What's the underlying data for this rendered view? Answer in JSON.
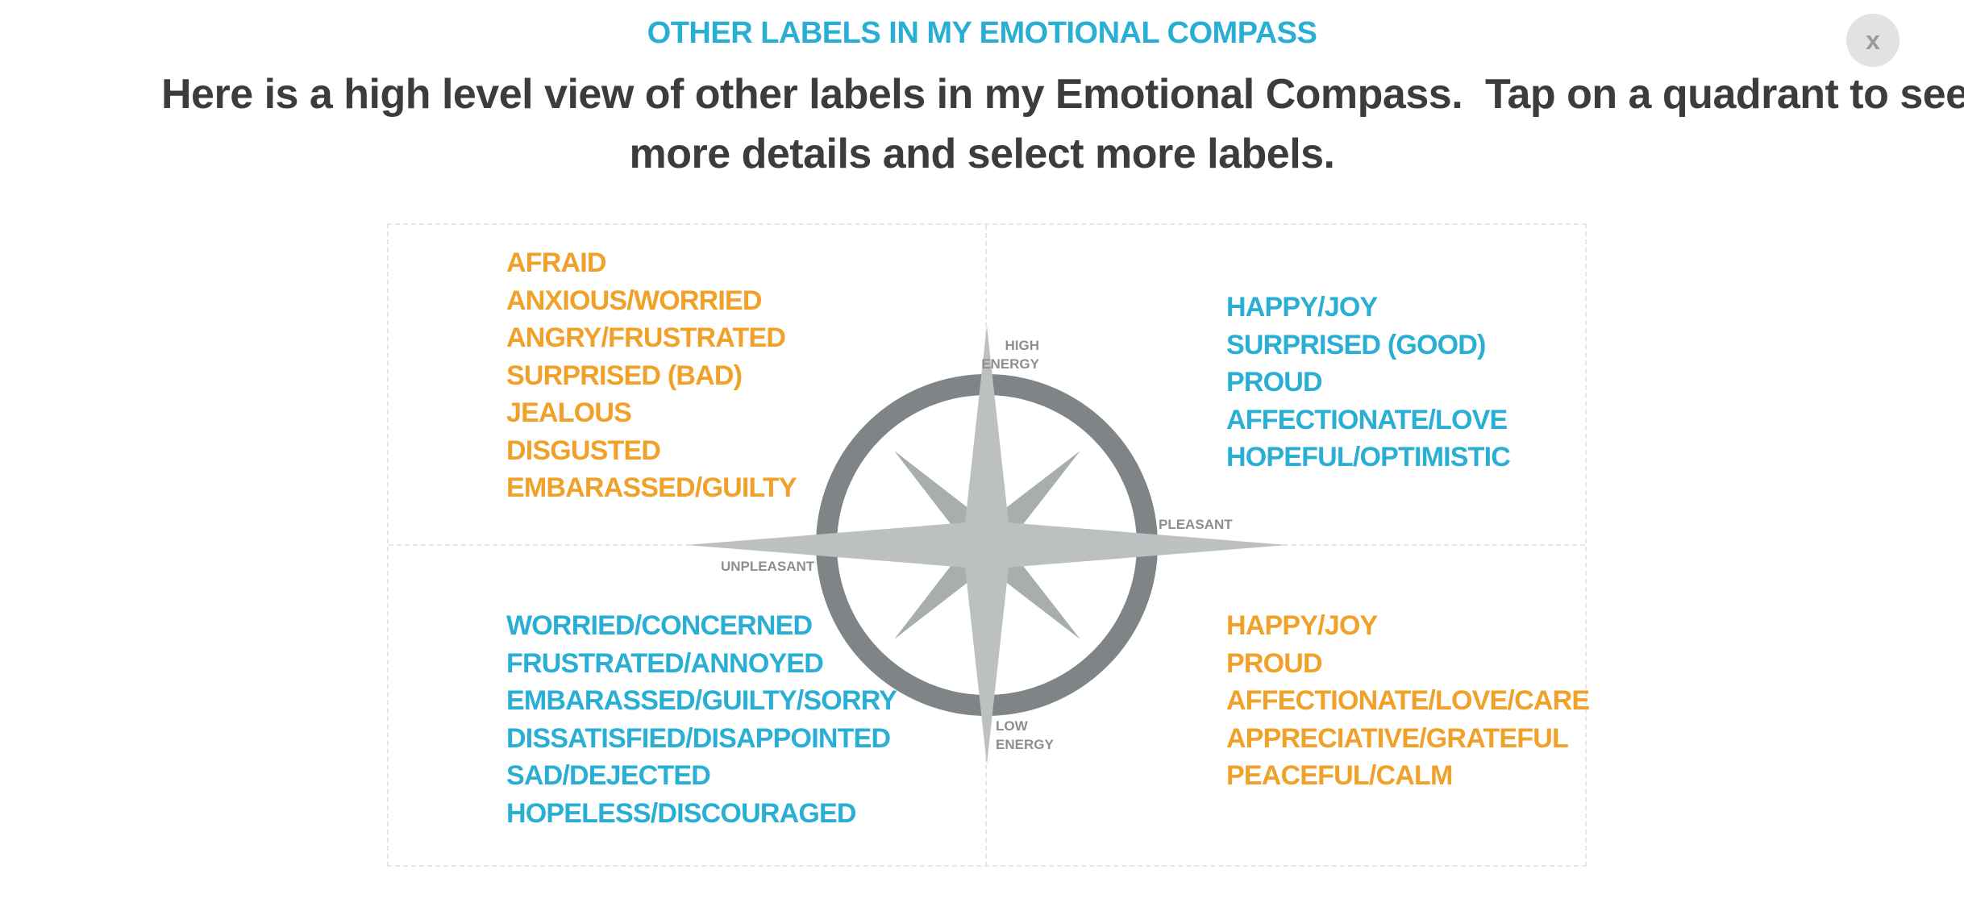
{
  "header": {
    "eyebrow": "OTHER LABELS IN MY EMOTIONAL COMPASS",
    "headline_line1": "Here is a high level view of other labels in my Emotional Compass.  Tap on a quadrant to see",
    "headline_line2": "more details and select more labels.",
    "close_label": "x"
  },
  "compass": {
    "axis": {
      "high_line1": "HIGH",
      "high_line2": "ENERGY",
      "low_line1": "LOW",
      "low_line2": "ENERGY",
      "pleasant": "PLEASANT",
      "unpleasant": "UNPLEASANT"
    },
    "colors": {
      "ring": "#7f8486",
      "star_main": "#bcc0c1",
      "star_diagonal": "#a8adae",
      "orange": "#f0a12a",
      "blue": "#29aed4"
    },
    "quadrants": {
      "top_left": {
        "color": "#f0a12a",
        "labels": [
          "AFRAID",
          "ANXIOUS/WORRIED",
          "ANGRY/FRUSTRATED",
          "SURPRISED (BAD)",
          "JEALOUS",
          "DISGUSTED",
          "EMBARASSED/GUILTY"
        ]
      },
      "top_right": {
        "color": "#29aed4",
        "labels": [
          "HAPPY/JOY",
          "SURPRISED (GOOD)",
          "PROUD",
          "AFFECTIONATE/LOVE",
          "HOPEFUL/OPTIMISTIC"
        ]
      },
      "bottom_left": {
        "color": "#29aed4",
        "labels": [
          "WORRIED/CONCERNED",
          "FRUSTRATED/ANNOYED",
          "EMBARASSED/GUILTY/SORRY",
          "DISSATISFIED/DISAPPOINTED",
          "SAD/DEJECTED",
          "HOPELESS/DISCOURAGED"
        ]
      },
      "bottom_right": {
        "color": "#f0a12a",
        "labels": [
          "HAPPY/JOY",
          "PROUD",
          "AFFECTIONATE/LOVE/CARE",
          "APPRECIATIVE/GRATEFUL",
          "PEACEFUL/CALM"
        ]
      }
    }
  }
}
